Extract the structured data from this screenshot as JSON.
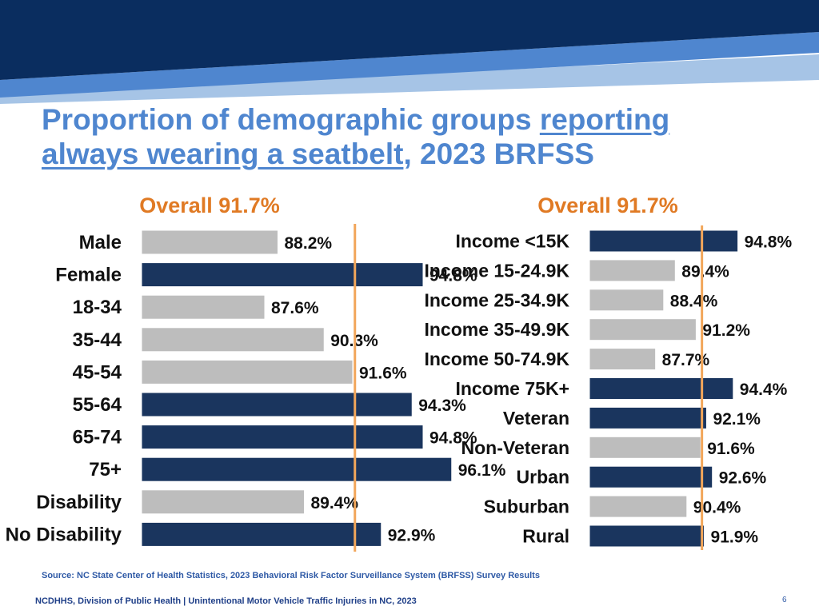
{
  "title": {
    "part1": "Proportion of demographic groups ",
    "part2": "reporting",
    "part3": "always wearing a seatbelt",
    "part4": ", 2023 BRFSS"
  },
  "colors": {
    "banner_dark": "#0a2d5f",
    "banner_mid": "#4f86cf",
    "banner_light": "#a6c4e6",
    "highlight_bar": "#1a355e",
    "normal_bar": "#bdbdbd",
    "reference_line": "#f2a65a",
    "overall_label": "#e07a24",
    "title": "#4f86cf"
  },
  "chart_data": [
    {
      "type": "bar",
      "orientation": "horizontal",
      "title": "Overall 91.7%",
      "reference_value": 91.7,
      "xlim": [
        82,
        100
      ],
      "categories": [
        "Male",
        "Female",
        "18-34",
        "35-44",
        "45-54",
        "55-64",
        "65-74",
        "75+",
        "Disability",
        "No Disability"
      ],
      "values": [
        88.2,
        94.8,
        87.6,
        90.3,
        91.6,
        94.3,
        94.8,
        96.1,
        89.4,
        92.9
      ],
      "labels": [
        "88.2%",
        "94.8%",
        "87.6%",
        "90.3%",
        "91.6%",
        "94.3%",
        "94.8%",
        "96.1%",
        "89.4%",
        "92.9%"
      ],
      "highlight": [
        false,
        true,
        false,
        false,
        false,
        true,
        true,
        true,
        false,
        true
      ]
    },
    {
      "type": "bar",
      "orientation": "horizontal",
      "title": "Overall 91.7%",
      "reference_value": 91.7,
      "xlim": [
        82,
        100
      ],
      "categories": [
        "Income <15K",
        "Income 15-24.9K",
        "Income 25-34.9K",
        "Income 35-49.9K",
        "Income 50-74.9K",
        "Income 75K+",
        "Veteran",
        "Non-Veteran",
        "Urban",
        "Suburban",
        "Rural"
      ],
      "values": [
        94.8,
        89.4,
        88.4,
        91.2,
        87.7,
        94.4,
        92.1,
        91.6,
        92.6,
        90.4,
        91.9
      ],
      "labels": [
        "94.8%",
        "89.4%",
        "88.4%",
        "91.2%",
        "87.7%",
        "94.4%",
        "92.1%",
        "91.6%",
        "92.6%",
        "90.4%",
        "91.9%"
      ],
      "highlight": [
        true,
        false,
        false,
        false,
        false,
        true,
        true,
        false,
        true,
        false,
        true
      ]
    }
  ],
  "source": "Source: NC State Center of Health Statistics, 2023 Behavioral Risk Factor Surveillance System (BRFSS) Survey Results",
  "footer": "NCDHHS, Division of Public Health | Unintentional Motor Vehicle Traffic Injuries in NC, 2023",
  "page_number": "6"
}
